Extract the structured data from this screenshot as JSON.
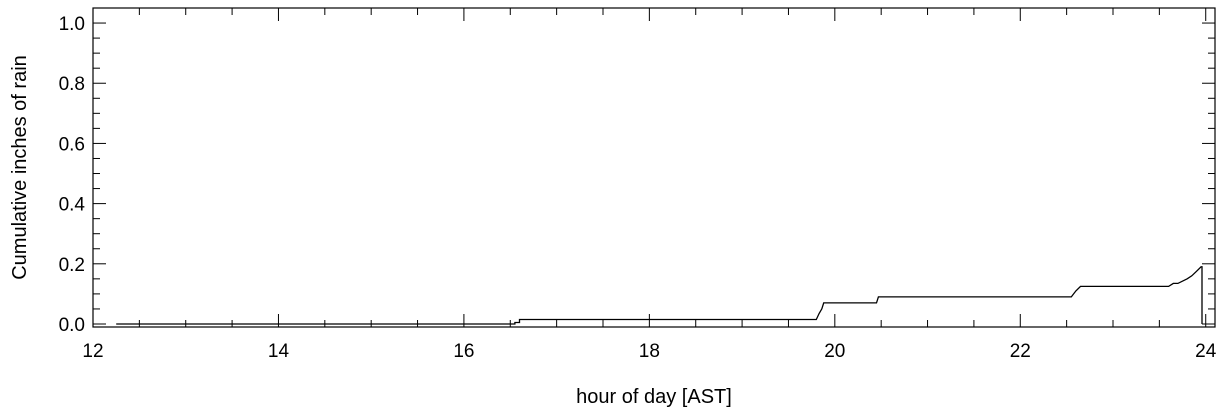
{
  "chart_data": {
    "type": "line",
    "title": "",
    "xlabel": "hour of day [AST]",
    "ylabel": "Cumulative inches of rain",
    "xlim": [
      12,
      24.1
    ],
    "ylim": [
      -0.01,
      1.05
    ],
    "x_ticks": [
      12,
      14,
      16,
      18,
      20,
      22,
      24
    ],
    "x_tick_labels": [
      "12",
      "14",
      "16",
      "18",
      "20",
      "22",
      "24"
    ],
    "y_ticks": [
      0.0,
      0.2,
      0.4,
      0.6,
      0.8,
      1.0
    ],
    "y_tick_labels": [
      "0.0",
      "0.2",
      "0.4",
      "0.6",
      "0.8",
      "1.0"
    ],
    "x_minor_step": 0.5,
    "y_minor_step": 0.05,
    "grid": false,
    "legend": "none",
    "line_color": "#000000",
    "series": [
      {
        "x": [
          12.25,
          16.55,
          16.55,
          16.6,
          16.6,
          19.8,
          19.83,
          19.86,
          19.88,
          20.45,
          20.47,
          22.55,
          22.6,
          22.65,
          23.6,
          23.65,
          23.7,
          23.8,
          23.85,
          23.9,
          23.95,
          23.96,
          23.96
        ],
        "y": [
          0.0,
          0.0,
          0.005,
          0.005,
          0.015,
          0.015,
          0.035,
          0.05,
          0.07,
          0.07,
          0.09,
          0.09,
          0.11,
          0.125,
          0.125,
          0.135,
          0.135,
          0.15,
          0.16,
          0.175,
          0.19,
          0.19,
          0.0
        ]
      }
    ]
  }
}
